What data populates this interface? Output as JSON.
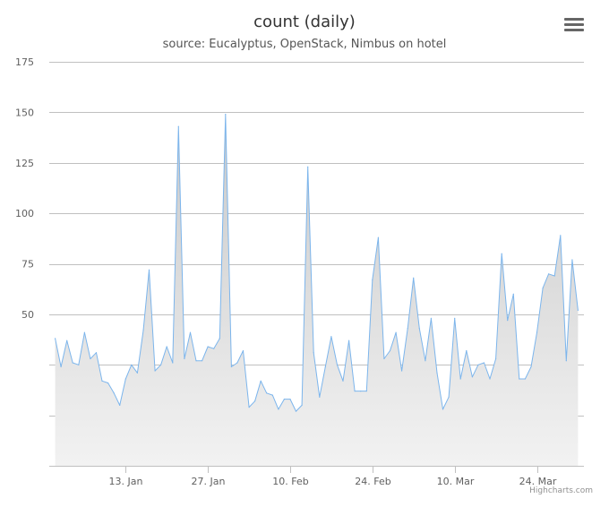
{
  "title": "count (daily)",
  "subtitle": "source: Eucalyptus, OpenStack, Nimbus on hotel",
  "credits": "Highcharts.com",
  "menu_icon": "hamburger-menu-icon",
  "colors": {
    "line": "#7cb5ec",
    "fill_top": "#c8c8c8",
    "fill_bottom": "#f2f2f2",
    "grid": "#c0c0c0",
    "menu": "#666666"
  },
  "chart_data": {
    "type": "area",
    "title": "count (daily)",
    "subtitle": "source: Eucalyptus, OpenStack, Nimbus on hotel",
    "xlabel": "",
    "ylabel": "",
    "ylim": [
      -25,
      175
    ],
    "y_ticks": [
      {
        "value": 50,
        "label": "50"
      },
      {
        "value": 75,
        "label": "75"
      },
      {
        "value": 100,
        "label": "100"
      },
      {
        "value": 125,
        "label": "125"
      },
      {
        "value": 150,
        "label": "150"
      },
      {
        "value": 175,
        "label": "175"
      }
    ],
    "x_ticks": [
      {
        "value": 12,
        "label": "13. Jan"
      },
      {
        "value": 26,
        "label": "27. Jan"
      },
      {
        "value": 40,
        "label": "10. Feb"
      },
      {
        "value": 54,
        "label": "24. Feb"
      },
      {
        "value": 68,
        "label": "10. Mar"
      },
      {
        "value": 82,
        "label": "24. Mar"
      }
    ],
    "xlim": [
      -1,
      90
    ],
    "grid": true,
    "series": [
      {
        "values": [
          38,
          24,
          37,
          26,
          25,
          41,
          28,
          31,
          17,
          16,
          11,
          5,
          18,
          25,
          21,
          42,
          72,
          22,
          25,
          34,
          26,
          143,
          28,
          41,
          27,
          27,
          34,
          33,
          38,
          149,
          24,
          26,
          32,
          4,
          7,
          17,
          11,
          10,
          3,
          8,
          8,
          2,
          5,
          123,
          31,
          9,
          24,
          39,
          25,
          17,
          37,
          12,
          12,
          12,
          67,
          88,
          28,
          32,
          41,
          22,
          43,
          68,
          43,
          27,
          48,
          21,
          3,
          9,
          48,
          18,
          32,
          19,
          25,
          26,
          18,
          28,
          80,
          47,
          60,
          18,
          18,
          24,
          41,
          63,
          70,
          69,
          89,
          27,
          77,
          52
        ]
      }
    ]
  }
}
